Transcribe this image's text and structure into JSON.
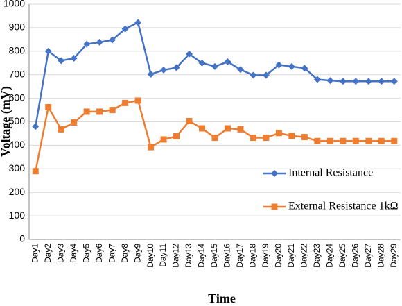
{
  "chart_data": {
    "type": "line",
    "x_label": "Time",
    "y_label": "Voltage (mV)",
    "categories": [
      "Day1",
      "Day2",
      "Day3",
      "Day4",
      "Day5",
      "Day6",
      "Day7",
      "Day8",
      "Day9",
      "Day10",
      "Day11",
      "Day12",
      "Day13",
      "Day14",
      "Day15",
      "Day16",
      "Day17",
      "Day18",
      "Day19",
      "Day20",
      "Day21",
      "Day22",
      "Day23",
      "Day24",
      "Day25",
      "Day26",
      "Day27",
      "Day28",
      "Day29"
    ],
    "series": [
      {
        "name": "Internal Resistance",
        "color": "#4472c4",
        "marker": "diamond",
        "values": [
          480,
          800,
          760,
          770,
          830,
          838,
          848,
          895,
          922,
          702,
          720,
          730,
          788,
          750,
          735,
          755,
          722,
          698,
          698,
          742,
          735,
          728,
          680,
          675,
          672,
          672,
          672,
          672,
          672
        ]
      },
      {
        "name": "External Resistance 1kΩ",
        "color": "#ed7d31",
        "marker": "square",
        "values": [
          290,
          562,
          468,
          497,
          543,
          543,
          550,
          580,
          590,
          392,
          425,
          438,
          503,
          472,
          432,
          472,
          468,
          432,
          432,
          452,
          440,
          435,
          418,
          418,
          418,
          418,
          418,
          418,
          418
        ]
      }
    ],
    "ylim": [
      0,
      1000
    ],
    "yticks": [
      0,
      100,
      200,
      300,
      400,
      500,
      600,
      700,
      800,
      900,
      1000
    ],
    "grid": true
  }
}
